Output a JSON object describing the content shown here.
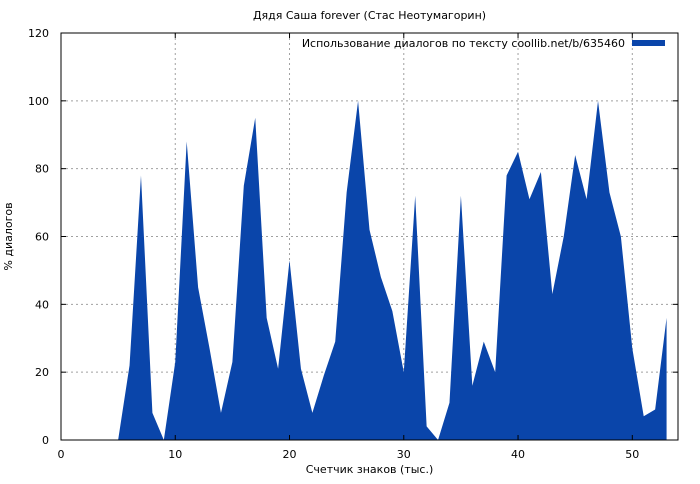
{
  "chart_data": {
    "type": "area",
    "title": "Дядя Саша forever (Стас Неотумагорин)",
    "xlabel": "Счетчик знаков (тыс.)",
    "ylabel": "% диалогов",
    "xlim": [
      0,
      54
    ],
    "ylim": [
      0,
      120
    ],
    "xticks": [
      0,
      10,
      20,
      30,
      40,
      50
    ],
    "yticks": [
      0,
      20,
      40,
      60,
      80,
      100,
      120
    ],
    "grid": true,
    "legend_position": "top-right",
    "series": [
      {
        "name": "Использование диалогов по тексту coollib.net/b/635460",
        "color": "#0a45aa",
        "x": [
          0,
          1,
          2,
          3,
          4,
          5,
          6,
          7,
          8,
          9,
          10,
          11,
          12,
          13,
          14,
          15,
          16,
          17,
          18,
          19,
          20,
          21,
          22,
          23,
          24,
          25,
          26,
          27,
          28,
          29,
          30,
          31,
          32,
          33,
          34,
          35,
          36,
          37,
          38,
          39,
          40,
          41,
          42,
          43,
          44,
          45,
          46,
          47,
          48,
          49,
          50,
          51,
          52,
          53
        ],
        "values": [
          0,
          0,
          0,
          0,
          0,
          0,
          22,
          78,
          8,
          0,
          23,
          88,
          45,
          27,
          8,
          23,
          75,
          95,
          36,
          21,
          53,
          21,
          8,
          19,
          29,
          73,
          100,
          62,
          48,
          38,
          20,
          72,
          4,
          0,
          11,
          72,
          16,
          29,
          20,
          78,
          85,
          71,
          79,
          43,
          60,
          84,
          71,
          100,
          73,
          60,
          27,
          7,
          9,
          36
        ]
      }
    ]
  }
}
